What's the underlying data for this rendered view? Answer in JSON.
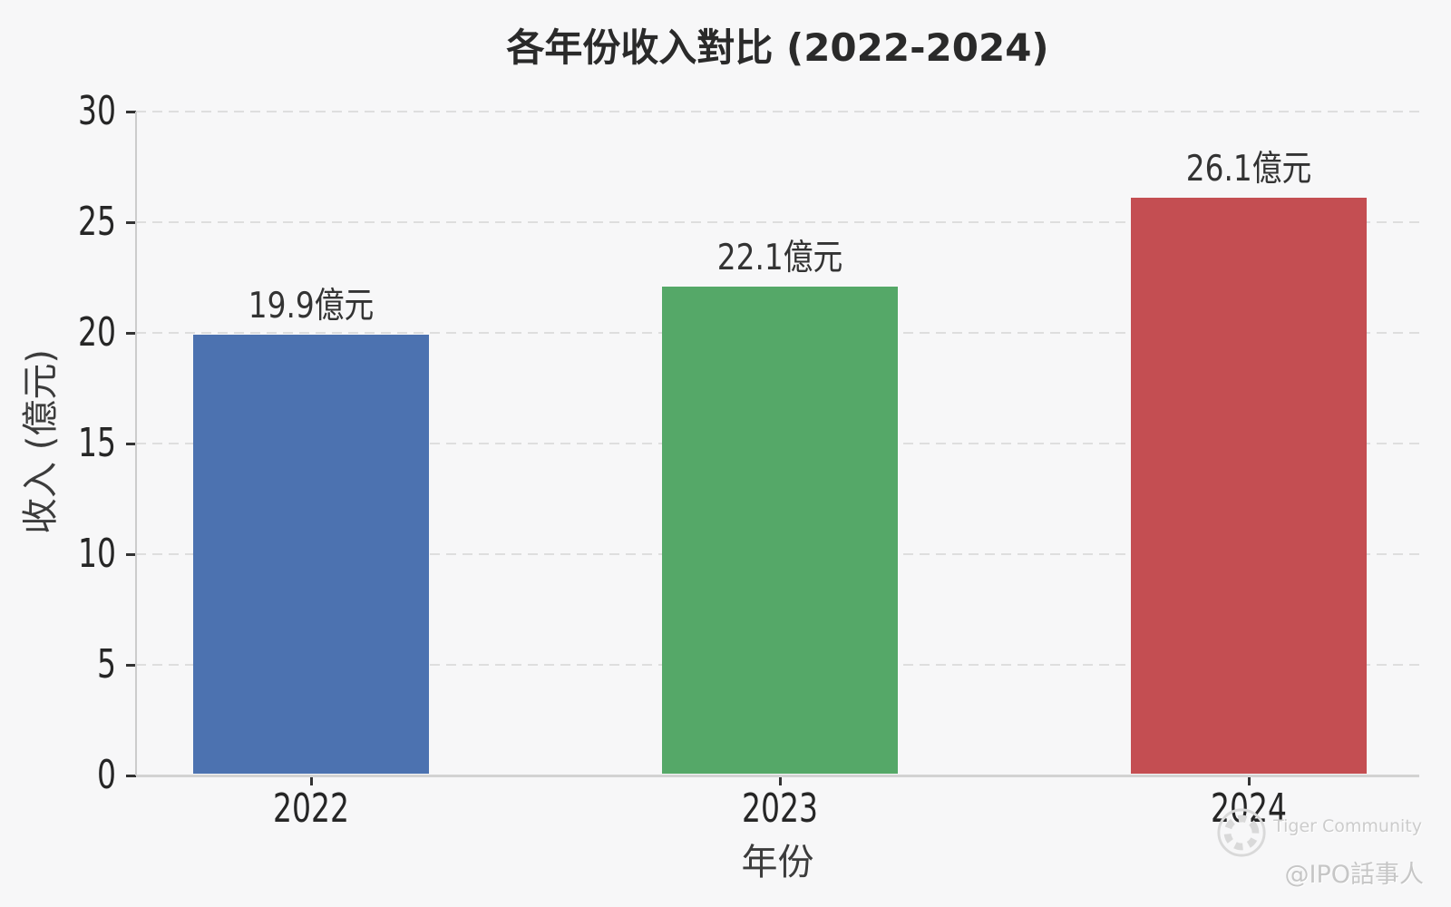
{
  "chart_data": {
    "type": "bar",
    "title": "各年份收入對比 (2022-2024)",
    "xlabel": "年份",
    "ylabel": "收入 (億元)",
    "categories": [
      "2022",
      "2023",
      "2024"
    ],
    "values": [
      19.9,
      22.1,
      26.1
    ],
    "bar_labels": [
      "19.9億元",
      "22.1億元",
      "26.1億元"
    ],
    "bar_colors": [
      "#4c72b0",
      "#55a868",
      "#c44e52"
    ],
    "ylim": [
      0,
      30
    ],
    "yticks": [
      0,
      5,
      10,
      15,
      20,
      25,
      30
    ],
    "grid": "horizontal-dashed",
    "legend": null
  },
  "watermark": {
    "brand": "Tiger Community",
    "handle": "@IPO話事人"
  }
}
